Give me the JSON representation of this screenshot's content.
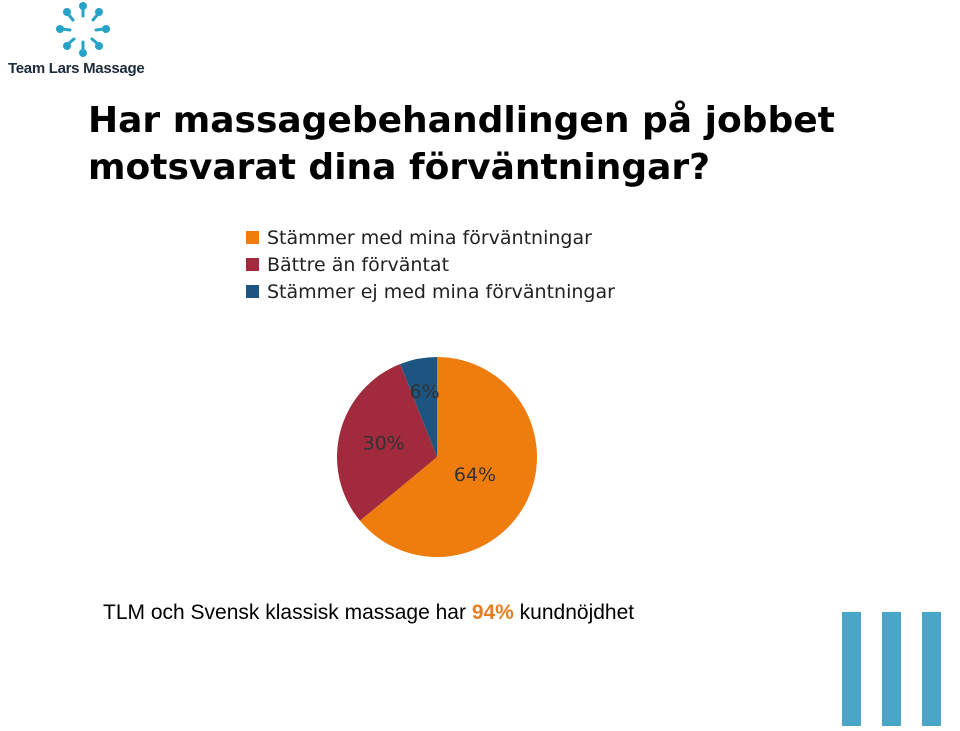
{
  "logo": {
    "text": "Team Lars Massage",
    "icon": "team-circle-people-icon",
    "color": "#27a3c7"
  },
  "title": "Har massagebehandlingen på jobbet motsvarat dina förväntningar?",
  "chart_data": {
    "type": "pie",
    "title": "",
    "slices": [
      {
        "label": "Stämmer med mina förväntningar",
        "value": 64,
        "display": "64%",
        "color": "#ef7d0d"
      },
      {
        "label": "Bättre än förväntat",
        "value": 30,
        "display": "30%",
        "color": "#a12a3c"
      },
      {
        "label": "Stämmer ej med mina förväntningar",
        "value": 6,
        "display": "6%",
        "color": "#1d5580"
      }
    ],
    "legend": "top",
    "start": "12 o'clock, clockwise"
  },
  "footer": {
    "prefix": "TLM och Svensk klassisk massage har ",
    "highlight": "94%",
    "suffix": " kundnöjdhet",
    "highlight_color": "#e67e22"
  },
  "decoration": {
    "bars_icon": "three-vertical-bars-icon",
    "color": "#4aa6c8"
  }
}
